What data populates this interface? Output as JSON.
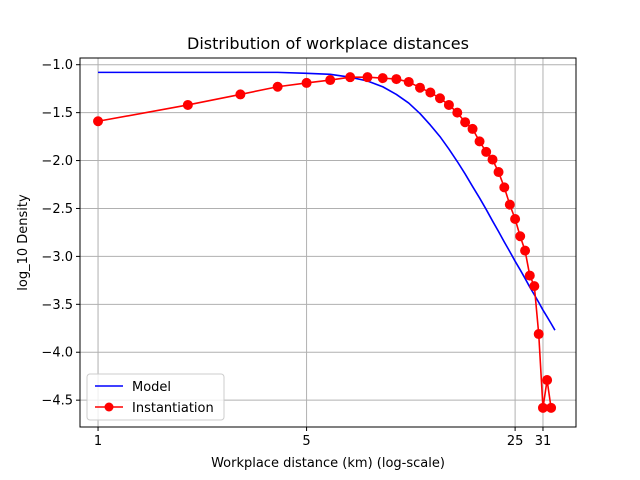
{
  "chart_data": {
    "type": "line",
    "title": "Distribution of workplace distances",
    "xlabel": "Workplace distance (km) (log-scale)",
    "ylabel": "log_10 Density",
    "x_scale": "log",
    "xlim": [
      0.87,
      40
    ],
    "ylim": [
      -4.78,
      -0.93
    ],
    "xticks": [
      1,
      5,
      25,
      31
    ],
    "yticks": [
      -1.0,
      -1.5,
      -2.0,
      -2.5,
      -3.0,
      -3.5,
      -4.0,
      -4.5
    ],
    "ytick_labels": [
      "−1.0",
      "−1.5",
      "−2.0",
      "−2.5",
      "−3.0",
      "−3.5",
      "−4.0",
      "−4.5"
    ],
    "grid": true,
    "legend_position": "lower-left",
    "series": [
      {
        "name": "Model",
        "color": "#0000ff",
        "marker": "none",
        "x": [
          1,
          1.5,
          2,
          3,
          4,
          5,
          6,
          7,
          8,
          9,
          10,
          11,
          12,
          13,
          14,
          15,
          16,
          17,
          18,
          19,
          20,
          21,
          22,
          23,
          24,
          25,
          26,
          27,
          28,
          29,
          30,
          31,
          32,
          33,
          34
        ],
        "y": [
          -1.08,
          -1.08,
          -1.08,
          -1.08,
          -1.08,
          -1.09,
          -1.1,
          -1.13,
          -1.17,
          -1.23,
          -1.31,
          -1.4,
          -1.51,
          -1.63,
          -1.75,
          -1.88,
          -2.01,
          -2.14,
          -2.27,
          -2.39,
          -2.51,
          -2.63,
          -2.74,
          -2.85,
          -2.95,
          -3.05,
          -3.14,
          -3.23,
          -3.32,
          -3.4,
          -3.48,
          -3.56,
          -3.63,
          -3.7,
          -3.77
        ]
      },
      {
        "name": "Instantiation",
        "color": "#ff0000",
        "marker": "circle",
        "x": [
          1,
          2,
          3,
          4,
          5,
          6,
          7,
          8,
          9,
          10,
          11,
          12,
          13,
          14,
          15,
          16,
          17,
          18,
          19,
          20,
          21,
          22,
          23,
          24,
          25,
          26,
          27,
          28,
          29,
          30,
          31,
          32,
          33
        ],
        "y": [
          -1.59,
          -1.42,
          -1.31,
          -1.23,
          -1.19,
          -1.16,
          -1.13,
          -1.13,
          -1.14,
          -1.15,
          -1.18,
          -1.24,
          -1.29,
          -1.35,
          -1.42,
          -1.5,
          -1.6,
          -1.67,
          -1.8,
          -1.91,
          -1.99,
          -2.12,
          -2.28,
          -2.46,
          -2.61,
          -2.79,
          -2.94,
          -3.2,
          -3.31,
          -3.81,
          -4.58,
          -4.29,
          -4.58
        ]
      }
    ]
  }
}
